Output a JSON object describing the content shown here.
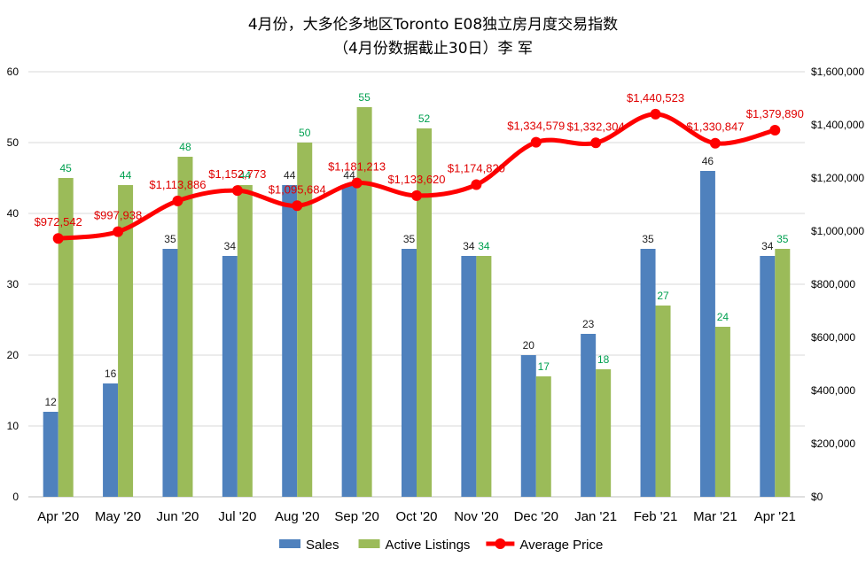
{
  "chart_data": {
    "type": "bar",
    "title_line1": "4月份，大多伦多地区Toronto E08独立房月度交易指数",
    "title_line2": "（4月份数据截止30日）李 军",
    "categories": [
      "Apr '20",
      "May '20",
      "Jun '20",
      "Jul '20",
      "Aug '20",
      "Sep '20",
      "Oct '20",
      "Nov '20",
      "Dec '20",
      "Jan '21",
      "Feb '21",
      "Mar '21",
      "Apr '21"
    ],
    "series": [
      {
        "name": "Sales",
        "type": "bar",
        "axis": "left",
        "color": "#4f81bd",
        "label_color": "#1f1f1f",
        "values": [
          12,
          16,
          35,
          34,
          44,
          44,
          35,
          34,
          20,
          23,
          35,
          46,
          34
        ]
      },
      {
        "name": "Active Listings",
        "type": "bar",
        "axis": "left",
        "color": "#9bbb59",
        "label_color": "#00a050",
        "values": [
          45,
          44,
          48,
          44,
          50,
          55,
          52,
          34,
          17,
          18,
          27,
          24,
          35
        ]
      },
      {
        "name": "Average Price",
        "type": "line",
        "axis": "right",
        "color": "#ff0000",
        "label_color": "#e00000",
        "values": [
          972542,
          997938,
          1113886,
          1152773,
          1095684,
          1181213,
          1133620,
          1174820,
          1334579,
          1332304,
          1440523,
          1330847,
          1379890
        ],
        "labels": [
          "$972,542",
          "$997,938",
          "$1,113,886",
          "$1,152,773",
          "$1,095,684",
          "$1,181,213",
          "$1,133,620",
          "$1,174,820",
          "$1,334,579",
          "$1,332,304",
          "$1,440,523",
          "$1,330,847",
          "$1,379,890"
        ]
      }
    ],
    "y_left": {
      "min": 0,
      "max": 60,
      "ticks": [
        0,
        10,
        20,
        30,
        40,
        50,
        60
      ],
      "tick_labels": [
        "0",
        "10",
        "20",
        "30",
        "40",
        "50",
        "60"
      ]
    },
    "y_right": {
      "min": 0,
      "max": 1600000,
      "ticks": [
        0,
        200000,
        400000,
        600000,
        800000,
        1000000,
        1200000,
        1400000,
        1600000
      ],
      "tick_labels": [
        "$0",
        "$200,000",
        "$400,000",
        "$600,000",
        "$800,000",
        "$1,000,000",
        "$1,200,000",
        "$1,400,000",
        "$1,600,000"
      ]
    },
    "grid": true,
    "legend_position": "bottom",
    "colors": {
      "grid": "#d9d9d9",
      "axis_text": "#000000"
    }
  }
}
